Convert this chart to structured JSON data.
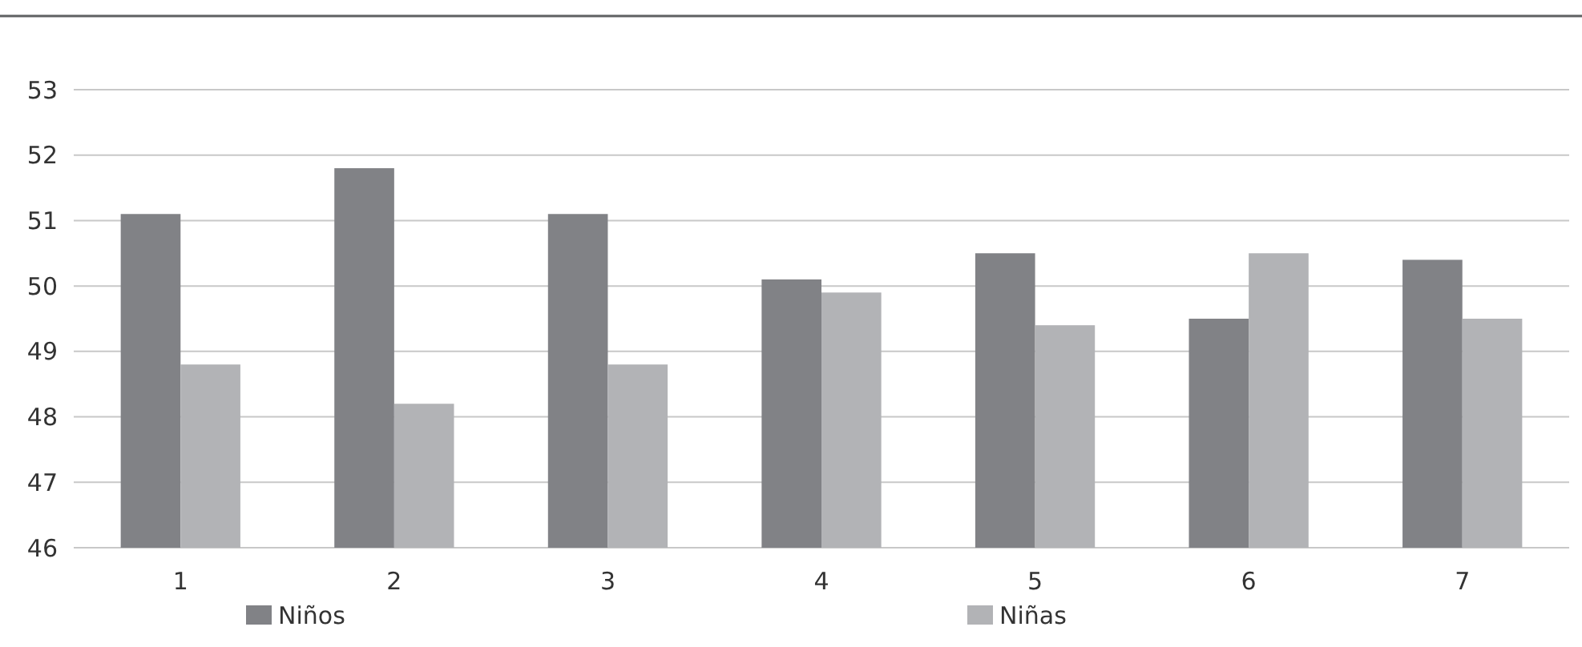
{
  "chart_data": {
    "type": "bar",
    "categories": [
      "1",
      "2",
      "3",
      "4",
      "5",
      "6",
      "7"
    ],
    "series": [
      {
        "name": "Niños",
        "color": "#818286",
        "values": [
          51.1,
          51.8,
          51.1,
          50.1,
          50.5,
          49.5,
          50.4
        ]
      },
      {
        "name": "Niñas",
        "color": "#b2b3b6",
        "values": [
          48.8,
          48.2,
          48.8,
          49.9,
          49.4,
          50.5,
          49.5
        ]
      }
    ],
    "ylim": [
      46,
      53
    ],
    "yticks": [
      46,
      47,
      48,
      49,
      50,
      51,
      52,
      53
    ],
    "grid": "y",
    "legend": "bottom"
  }
}
